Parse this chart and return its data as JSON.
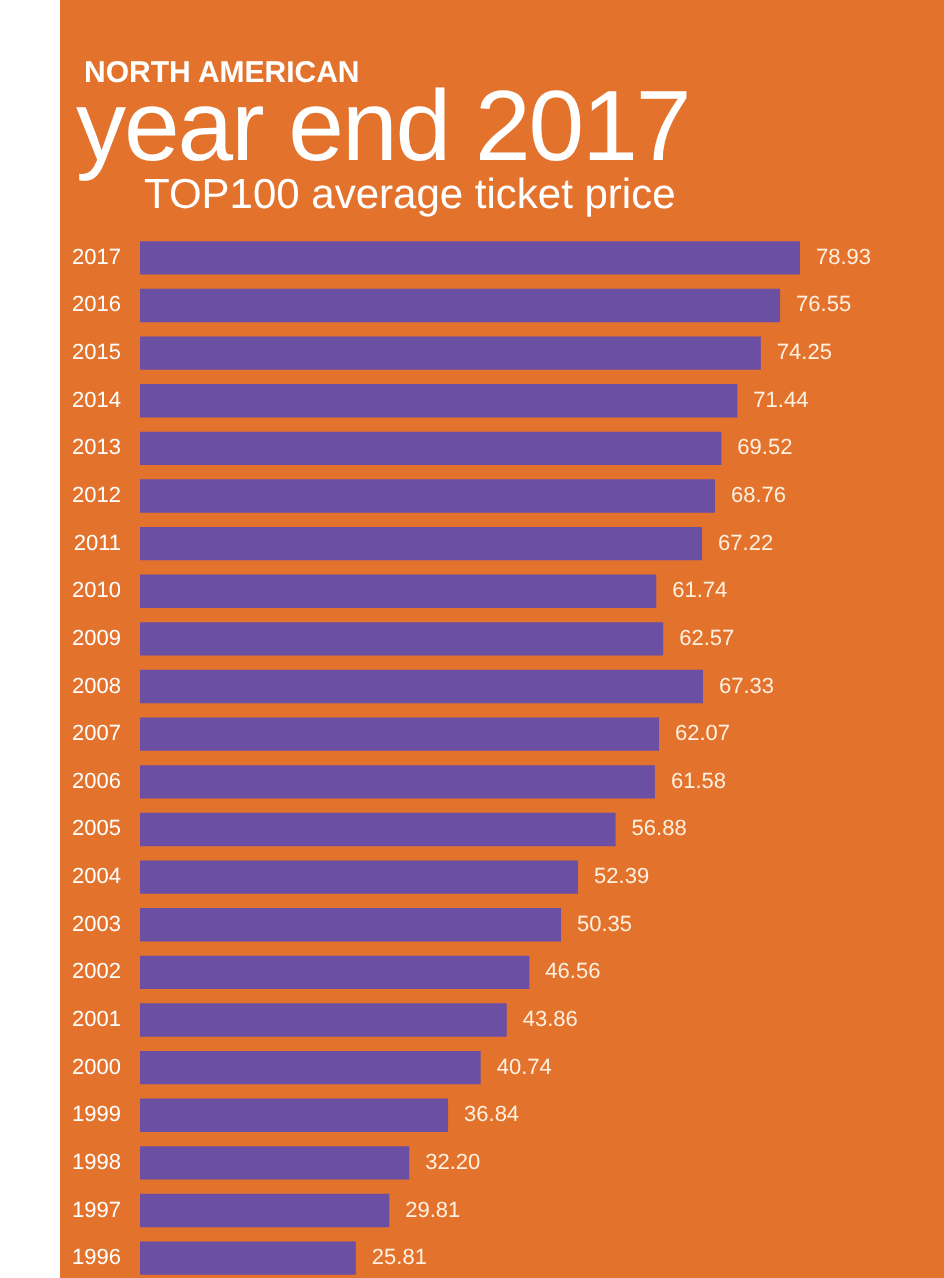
{
  "chart_data": {
    "type": "bar",
    "orientation": "horizontal",
    "title": "NORTH AMERICAN",
    "subtitle": "year end 2017",
    "annotations": [
      "TOP100 average ticket price"
    ],
    "categories": [
      "2017",
      "2016",
      "2015",
      "2014",
      "2013",
      "2012",
      "2011",
      "2010",
      "2009",
      "2008",
      "2007",
      "2006",
      "2005",
      "2004",
      "2003",
      "2002",
      "2001",
      "2000",
      "1999",
      "1998",
      "1997",
      "1996"
    ],
    "values": [
      78.93,
      76.55,
      74.25,
      71.44,
      69.52,
      68.76,
      67.22,
      61.74,
      62.57,
      67.33,
      62.07,
      61.58,
      56.88,
      52.39,
      50.35,
      46.56,
      43.86,
      40.74,
      36.84,
      32.2,
      29.81,
      25.81
    ],
    "value_labels": [
      "78.93",
      "76.55",
      "74.25",
      "71.44",
      "69.52",
      "68.76",
      "67.22",
      "61.74",
      "62.57",
      "67.33",
      "62.07",
      "61.58",
      "56.88",
      "52.39",
      "50.35",
      "46.56",
      "43.86",
      "40.74",
      "36.84",
      "32.20",
      "29.81",
      "25.81"
    ],
    "color": "#6b4fa3",
    "tick_labels": "y"
  }
}
